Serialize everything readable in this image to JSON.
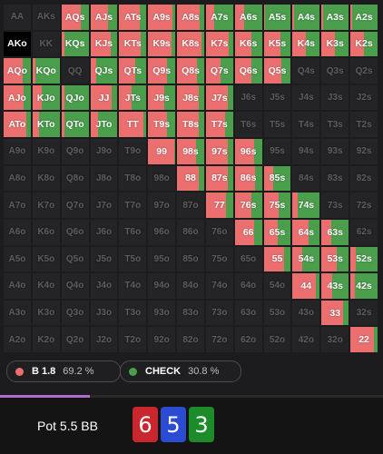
{
  "colors": {
    "bet": "#ec6f6f",
    "check": "#4a9e4c",
    "cell_bg": "#242426"
  },
  "grid": {
    "rows": [
      [
        "AA",
        "AKs",
        "AQs",
        "AJs",
        "ATs",
        "A9s",
        "A8s",
        "A7s",
        "A6s",
        "A5s",
        "A4s",
        "A3s",
        "A2s"
      ],
      [
        "AKo",
        "KK",
        "KQs",
        "KJs",
        "KTs",
        "K9s",
        "K8s",
        "K7s",
        "K6s",
        "K5s",
        "K4s",
        "K3s",
        "K2s"
      ],
      [
        "AQo",
        "KQo",
        "QQ",
        "QJs",
        "QTs",
        "Q9s",
        "Q8s",
        "Q7s",
        "Q6s",
        "Q5s",
        "Q4s",
        "Q3s",
        "Q2s"
      ],
      [
        "AJo",
        "KJo",
        "QJo",
        "JJ",
        "JTs",
        "J9s",
        "J8s",
        "J7s",
        "J6s",
        "J5s",
        "J4s",
        "J3s",
        "J2s"
      ],
      [
        "ATo",
        "KTo",
        "QTo",
        "JTo",
        "TT",
        "T9s",
        "T8s",
        "T7s",
        "T6s",
        "T5s",
        "T4s",
        "T3s",
        "T2s"
      ],
      [
        "A9o",
        "K9o",
        "Q9o",
        "J9o",
        "T9o",
        "99",
        "98s",
        "97s",
        "96s",
        "95s",
        "94s",
        "93s",
        "92s"
      ],
      [
        "A8o",
        "K8o",
        "Q8o",
        "J8o",
        "T8o",
        "98o",
        "88",
        "87s",
        "86s",
        "85s",
        "84s",
        "83s",
        "82s"
      ],
      [
        "A7o",
        "K7o",
        "Q7o",
        "J7o",
        "T7o",
        "97o",
        "87o",
        "77",
        "76s",
        "75s",
        "74s",
        "73s",
        "72s"
      ],
      [
        "A6o",
        "K6o",
        "Q6o",
        "J6o",
        "T6o",
        "96o",
        "86o",
        "76o",
        "66",
        "65s",
        "64s",
        "63s",
        "62s"
      ],
      [
        "A5o",
        "K5o",
        "Q5o",
        "J5o",
        "T5o",
        "95o",
        "85o",
        "75o",
        "65o",
        "55",
        "54s",
        "53s",
        "52s"
      ],
      [
        "A4o",
        "K4o",
        "Q4o",
        "J4o",
        "T4o",
        "94o",
        "84o",
        "74o",
        "64o",
        "54o",
        "44",
        "43s",
        "42s"
      ],
      [
        "A3o",
        "K3o",
        "Q3o",
        "J3o",
        "T3o",
        "93o",
        "83o",
        "73o",
        "63o",
        "53o",
        "43o",
        "33",
        "32s"
      ],
      [
        "A2o",
        "K2o",
        "Q2o",
        "J2o",
        "T2o",
        "92o",
        "82o",
        "72o",
        "62o",
        "52o",
        "42o",
        "32o",
        "22"
      ]
    ],
    "strategy": {
      "AQs": [
        0.7,
        0.3
      ],
      "AJs": [
        0.65,
        0.35
      ],
      "ATs": [
        0.75,
        0.25
      ],
      "A9s": [
        0.9,
        0.1
      ],
      "A8s": [
        0.85,
        0.15
      ],
      "A7s": [
        0.3,
        0.7
      ],
      "A6s": [
        0.35,
        0.65
      ],
      "A5s": [
        0.05,
        0.95
      ],
      "A4s": [
        0.05,
        0.95
      ],
      "A3s": [
        0.05,
        0.95
      ],
      "A2s": [
        0.05,
        0.95
      ],
      "AKo": [
        0,
        0
      ],
      "KQs": [
        0.1,
        0.9
      ],
      "KJs": [
        0.75,
        0.25
      ],
      "KTs": [
        0.8,
        0.2
      ],
      "K9s": [
        0.85,
        0.15
      ],
      "K8s": [
        0.9,
        0.1
      ],
      "K7s": [
        0.85,
        0.15
      ],
      "K6s": [
        0.6,
        0.4
      ],
      "K5s": [
        0.6,
        0.4
      ],
      "K4s": [
        0.5,
        0.5
      ],
      "K3s": [
        0.5,
        0.5
      ],
      "K2s": [
        0.5,
        0.5
      ],
      "AQo": [
        0.7,
        0.3
      ],
      "KQo": [
        0.1,
        0.9
      ],
      "QJs": [
        0.2,
        0.8
      ],
      "QTs": [
        0.6,
        0.4
      ],
      "Q9s": [
        0.7,
        0.3
      ],
      "Q8s": [
        0.75,
        0.25
      ],
      "Q7s": [
        0.55,
        0.45
      ],
      "Q6s": [
        0.6,
        0.4
      ],
      "Q5s": [
        0.65,
        0.35
      ],
      "AJo": [
        0.75,
        0.25
      ],
      "KJo": [
        0.35,
        0.65
      ],
      "QJo": [
        0.1,
        0.9
      ],
      "JJ": [
        0.8,
        0.2
      ],
      "JTs": [
        0.45,
        0.55
      ],
      "J9s": [
        0.6,
        0.4
      ],
      "J8s": [
        0.8,
        0.2
      ],
      "J7s": [
        0.8,
        0.2
      ],
      "ATo": [
        0.85,
        0.15
      ],
      "KTo": [
        0.25,
        0.75
      ],
      "QTo": [
        0.1,
        0.9
      ],
      "JTo": [
        0.3,
        0.7
      ],
      "TT": [
        0.9,
        0.1
      ],
      "T9s": [
        0.7,
        0.3
      ],
      "T8s": [
        0.8,
        0.2
      ],
      "T7s": [
        0.7,
        0.3
      ],
      "99": [
        0.95,
        0.05
      ],
      "98s": [
        0.7,
        0.3
      ],
      "97s": [
        0.8,
        0.2
      ],
      "96s": [
        0.7,
        0.3
      ],
      "88": [
        0.8,
        0.2
      ],
      "87s": [
        0.8,
        0.2
      ],
      "86s": [
        0.75,
        0.25
      ],
      "85s": [
        0.35,
        0.65
      ],
      "77": [
        0.75,
        0.25
      ],
      "76s": [
        0.6,
        0.4
      ],
      "75s": [
        0.55,
        0.45
      ],
      "74s": [
        0.2,
        0.8
      ],
      "66": [
        0.7,
        0.3
      ],
      "65s": [
        0.5,
        0.5
      ],
      "64s": [
        0.6,
        0.4
      ],
      "63s": [
        0.35,
        0.65
      ],
      "55": [
        0.75,
        0.25
      ],
      "54s": [
        0.35,
        0.65
      ],
      "53s": [
        0.55,
        0.45
      ],
      "52s": [
        0.2,
        0.8
      ],
      "44": [
        0.85,
        0.15
      ],
      "43s": [
        0.4,
        0.6
      ],
      "42s": [
        0.15,
        0.85
      ],
      "33": [
        0.8,
        0.2
      ],
      "22": [
        0.85,
        0.15
      ]
    }
  },
  "legend": {
    "bet": {
      "label": "B 1.8",
      "pct": "69.2 %"
    },
    "check": {
      "label": "CHECK",
      "pct": "30.8 %"
    }
  },
  "progress": {
    "fraction": 0.235,
    "color": "#b06ad6"
  },
  "pot": {
    "label": "Pot 5.5 BB"
  },
  "board": [
    {
      "rank": "6",
      "suit": "hearts",
      "color": "#c8282d"
    },
    {
      "rank": "5",
      "suit": "diamonds",
      "color": "#2a4bd2"
    },
    {
      "rank": "3",
      "suit": "clubs",
      "color": "#1c8c2a"
    }
  ]
}
